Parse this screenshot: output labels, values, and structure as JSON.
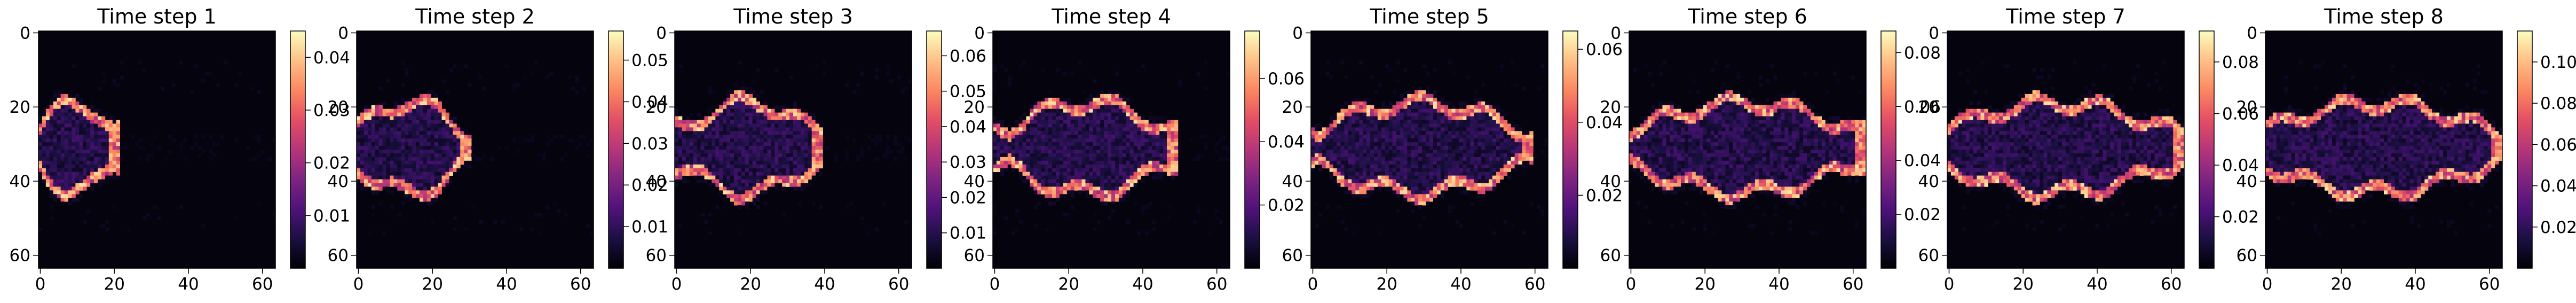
{
  "chart_data": [
    {
      "type": "heatmap",
      "title": "Time step 1",
      "colormap": "magma",
      "x_ticks": [
        "0",
        "20",
        "40",
        "60"
      ],
      "y_ticks": [
        "0",
        "20",
        "40",
        "60"
      ],
      "xlim": [
        0,
        63
      ],
      "ylim": [
        63,
        0
      ],
      "colorbar_ticks": [
        "0.01",
        "0.02",
        "0.03",
        "0.04"
      ],
      "colorbar_range": [
        0,
        0.045
      ],
      "front_x": 20,
      "start_x": 0
    },
    {
      "type": "heatmap",
      "title": "Time step 2",
      "colormap": "magma",
      "x_ticks": [
        "0",
        "20",
        "40",
        "60"
      ],
      "y_ticks": [
        "0",
        "20",
        "40",
        "60"
      ],
      "xlim": [
        0,
        63
      ],
      "ylim": [
        63,
        0
      ],
      "colorbar_ticks": [
        "0.01",
        "0.02",
        "0.03",
        "0.04",
        "0.05"
      ],
      "colorbar_range": [
        0,
        0.057
      ],
      "front_x": 29,
      "start_x": 0
    },
    {
      "type": "heatmap",
      "title": "Time step 3",
      "colormap": "magma",
      "x_ticks": [
        "0",
        "20",
        "40",
        "60"
      ],
      "y_ticks": [
        "0",
        "20",
        "40",
        "60"
      ],
      "xlim": [
        0,
        63
      ],
      "ylim": [
        63,
        0
      ],
      "colorbar_ticks": [
        "0.01",
        "0.02",
        "0.03",
        "0.04",
        "0.05",
        "0.06"
      ],
      "colorbar_range": [
        0,
        0.067
      ],
      "front_x": 38,
      "start_x": 2
    },
    {
      "type": "heatmap",
      "title": "Time step 4",
      "colormap": "magma",
      "x_ticks": [
        "0",
        "20",
        "40",
        "60"
      ],
      "y_ticks": [
        "0",
        "20",
        "40",
        "60"
      ],
      "xlim": [
        0,
        63
      ],
      "ylim": [
        63,
        0
      ],
      "colorbar_ticks": [
        "0.02",
        "0.04",
        "0.06"
      ],
      "colorbar_range": [
        0,
        0.075
      ],
      "front_x": 48,
      "start_x": 4
    },
    {
      "type": "heatmap",
      "title": "Time step 5",
      "colormap": "magma",
      "x_ticks": [
        "0",
        "20",
        "40",
        "60"
      ],
      "y_ticks": [
        "0",
        "20",
        "40",
        "60"
      ],
      "xlim": [
        0,
        63
      ],
      "ylim": [
        63,
        0
      ],
      "colorbar_ticks": [
        "0.02",
        "0.04",
        "0.06"
      ],
      "colorbar_range": [
        0,
        0.065
      ],
      "front_x": 58,
      "start_x": 2
    },
    {
      "type": "heatmap",
      "title": "Time step 6",
      "colormap": "magma",
      "x_ticks": [
        "0",
        "20",
        "40",
        "60"
      ],
      "y_ticks": [
        "0",
        "20",
        "40",
        "60"
      ],
      "xlim": [
        0,
        63
      ],
      "ylim": [
        63,
        0
      ],
      "colorbar_ticks": [
        "0.02",
        "0.04",
        "0.06",
        "0.08"
      ],
      "colorbar_range": [
        0,
        0.088
      ],
      "front_x": 62,
      "start_x": 2
    },
    {
      "type": "heatmap",
      "title": "Time step 7",
      "colormap": "magma",
      "x_ticks": [
        "0",
        "20",
        "40",
        "60"
      ],
      "y_ticks": [
        "0",
        "20",
        "40",
        "60"
      ],
      "xlim": [
        0,
        63
      ],
      "ylim": [
        63,
        0
      ],
      "colorbar_ticks": [
        "0.02",
        "0.04",
        "0.06",
        "0.08"
      ],
      "colorbar_range": [
        0,
        0.092
      ],
      "front_x": 62,
      "start_x": 0
    },
    {
      "type": "heatmap",
      "title": "Time step 8",
      "colormap": "magma",
      "x_ticks": [
        "0",
        "20",
        "40",
        "60"
      ],
      "y_ticks": [
        "0",
        "20",
        "40",
        "60"
      ],
      "xlim": [
        0,
        63
      ],
      "ylim": [
        63,
        0
      ],
      "colorbar_ticks": [
        "0.02",
        "0.04",
        "0.06",
        "0.08",
        "0.10"
      ],
      "colorbar_range": [
        0,
        0.115
      ],
      "front_x": 62,
      "start_x": 0
    }
  ]
}
